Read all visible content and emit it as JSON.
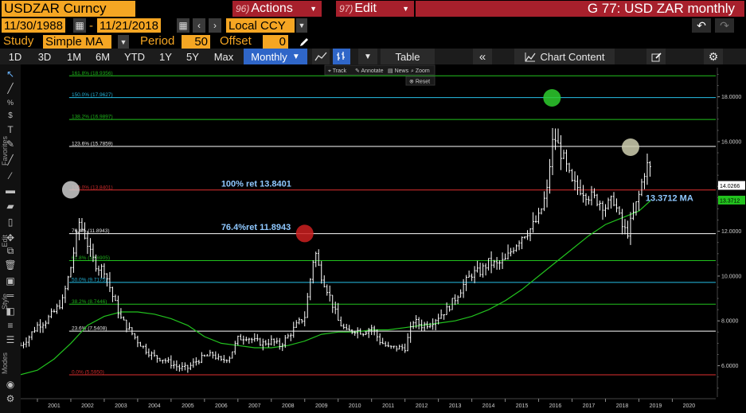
{
  "header": {
    "ticker": "USDZAR Curncy",
    "actions_num": "96)",
    "actions_label": "Actions",
    "edit_num": "97)",
    "edit_label": "Edit",
    "title": "G 77: USD ZAR monthly"
  },
  "range": {
    "start": "11/30/1988",
    "dash": "-",
    "end": "11/21/2018",
    "currency": "Local CCY"
  },
  "study": {
    "study_label": "Study",
    "study_value": "Simple MA",
    "period_label": "Period",
    "period_value": "50",
    "offset_label": "Offset",
    "offset_value": "0"
  },
  "toolbar": {
    "periods": [
      "1D",
      "3D",
      "1M",
      "6M",
      "YTD",
      "1Y",
      "5Y",
      "Max"
    ],
    "frequency": "Monthly",
    "table_label": "Table",
    "chart_content_label": "Chart Content"
  },
  "left_labels": {
    "favorites": "Favorites",
    "edit": "Edit",
    "style": "Style",
    "modes": "Modes"
  },
  "chart_tools": {
    "track": "Track",
    "annotate": "Annotate",
    "news": "News",
    "zoom": "Zoom",
    "reset": "Reset"
  },
  "colors": {
    "accent": "#f5a623",
    "func": "#a7202c",
    "selected": "#2f66c8",
    "ma": "#22c21e",
    "price": "#ffffff"
  },
  "chart_data": {
    "type": "line",
    "title": "G 77: USD ZAR monthly",
    "x_ticks": [
      "2001",
      "2002",
      "2003",
      "2004",
      "2005",
      "2006",
      "2007",
      "2008",
      "2009",
      "2010",
      "2011",
      "2012",
      "2013",
      "2014",
      "2015",
      "2016",
      "2017",
      "2018",
      "2019",
      "2020"
    ],
    "y_ticks": [
      6,
      8,
      10,
      12,
      14,
      16,
      18
    ],
    "y_tick_labels": [
      "6.0000",
      "8.0000",
      "10.0000",
      "12.0000",
      "14.0000",
      "16.0000",
      "18.0000"
    ],
    "ylim": [
      4.6,
      19.3
    ],
    "xlim": [
      2000.0,
      2020.8
    ],
    "grid": false,
    "last_price_label": "14.0266",
    "last_price": 14.0266,
    "last_ma_label": "13.3712",
    "last_ma": 13.3712,
    "fib_levels": [
      {
        "label": "0.0% (5.5950)",
        "value": 5.595,
        "color": "#e03030"
      },
      {
        "label": "23.6% (7.5408)",
        "value": 7.5408,
        "color": "#ffffff"
      },
      {
        "label": "38.2% (8.7446)",
        "value": 8.7446,
        "color": "#22c21e"
      },
      {
        "label": "50.0% (9.7175)",
        "value": 9.7175,
        "color": "#27c0e8"
      },
      {
        "label": "61.8% (10.6905)",
        "value": 10.6905,
        "color": "#22c21e"
      },
      {
        "label": "76.4% (11.8943)",
        "value": 11.8943,
        "color": "#ffffff"
      },
      {
        "label": "100.0% (13.8401)",
        "value": 13.8401,
        "color": "#e03030"
      },
      {
        "label": "123.6% (15.7859)",
        "value": 15.7859,
        "color": "#ffffff"
      },
      {
        "label": "138.2% (16.9897)",
        "value": 16.9897,
        "color": "#22c21e"
      },
      {
        "label": "150.0% (17.9627)",
        "value": 17.9627,
        "color": "#27c0e8"
      },
      {
        "label": "161.8% (18.9356)",
        "value": 18.9356,
        "color": "#22c21e"
      }
    ],
    "annotations": [
      {
        "text": "100% ret 13.8401",
        "x": 2006.0,
        "y": 14.0,
        "color": "#8fc8ff"
      },
      {
        "text": "76.4%ret 11.8943",
        "x": 2006.0,
        "y": 12.05,
        "color": "#8fc8ff"
      },
      {
        "text": "13.3712 MA",
        "x": 2018.7,
        "y": 13.35,
        "color": "#8fc8ff"
      }
    ],
    "markers": [
      {
        "x": 2001.5,
        "y": 13.85,
        "color": "#cccccc"
      },
      {
        "x": 2008.5,
        "y": 11.9,
        "color": "#cc2020"
      },
      {
        "x": 2015.9,
        "y": 17.95,
        "color": "#2ecc2e"
      },
      {
        "x": 2018.25,
        "y": 15.75,
        "color": "#cfcfb0"
      }
    ],
    "series": [
      {
        "name": "USDZAR",
        "x": [
          2000.0,
          2000.25,
          2000.5,
          2000.75,
          2001.0,
          2001.25,
          2001.5,
          2001.75,
          2001.95,
          2002.1,
          2002.3,
          2002.5,
          2002.75,
          2003.0,
          2003.25,
          2003.5,
          2003.75,
          2004.0,
          2004.25,
          2004.5,
          2004.75,
          2005.0,
          2005.25,
          2005.5,
          2005.75,
          2006.0,
          2006.25,
          2006.5,
          2006.75,
          2007.0,
          2007.25,
          2007.5,
          2007.75,
          2008.0,
          2008.25,
          2008.5,
          2008.8,
          2008.95,
          2009.2,
          2009.5,
          2009.75,
          2010.0,
          2010.25,
          2010.5,
          2010.75,
          2011.0,
          2011.25,
          2011.5,
          2011.75,
          2012.0,
          2012.25,
          2012.5,
          2012.75,
          2013.0,
          2013.25,
          2013.5,
          2013.75,
          2014.0,
          2014.25,
          2014.5,
          2014.75,
          2015.0,
          2015.25,
          2015.5,
          2015.75,
          2015.9,
          2016.0,
          2016.25,
          2016.5,
          2016.75,
          2017.0,
          2017.25,
          2017.5,
          2017.75,
          2018.0,
          2018.15,
          2018.3,
          2018.5,
          2018.65,
          2018.8,
          2018.9
        ],
        "values": [
          6.9,
          7.3,
          7.8,
          8.0,
          8.4,
          8.9,
          10.4,
          12.4,
          11.7,
          10.9,
          10.4,
          10.3,
          9.1,
          8.1,
          7.6,
          7.1,
          6.7,
          6.4,
          6.3,
          6.1,
          5.9,
          5.9,
          6.2,
          6.4,
          6.5,
          6.2,
          6.4,
          7.2,
          7.3,
          7.1,
          7.0,
          7.1,
          6.9,
          7.3,
          7.8,
          8.2,
          11.2,
          10.2,
          9.3,
          8.0,
          7.5,
          7.6,
          7.5,
          7.7,
          7.1,
          6.8,
          6.8,
          6.8,
          8.0,
          7.8,
          7.9,
          8.2,
          8.5,
          9.0,
          9.6,
          10.1,
          10.2,
          10.6,
          10.5,
          10.7,
          11.3,
          11.8,
          12.1,
          12.6,
          13.8,
          15.9,
          16.1,
          15.2,
          14.1,
          13.9,
          13.6,
          13.4,
          13.1,
          13.4,
          12.2,
          11.9,
          12.6,
          13.6,
          14.6,
          15.1,
          14.1
        ]
      },
      {
        "name": "MA",
        "x": [
          2000.0,
          2000.5,
          2001.0,
          2001.5,
          2002.0,
          2002.5,
          2003.0,
          2003.5,
          2004.0,
          2004.5,
          2005.0,
          2005.5,
          2006.0,
          2006.5,
          2007.0,
          2007.5,
          2008.0,
          2008.5,
          2009.0,
          2009.5,
          2010.0,
          2010.5,
          2011.0,
          2011.5,
          2012.0,
          2012.5,
          2013.0,
          2013.5,
          2014.0,
          2014.5,
          2015.0,
          2015.5,
          2016.0,
          2016.5,
          2017.0,
          2017.5,
          2018.0,
          2018.5,
          2018.85
        ],
        "values": [
          5.6,
          5.8,
          6.3,
          7.0,
          7.8,
          8.2,
          8.4,
          8.4,
          8.3,
          8.1,
          7.8,
          7.3,
          7.0,
          6.9,
          6.8,
          6.8,
          6.9,
          7.1,
          7.4,
          7.5,
          7.5,
          7.6,
          7.6,
          7.7,
          7.8,
          7.9,
          8.0,
          8.2,
          8.5,
          8.9,
          9.4,
          10.0,
          10.6,
          11.2,
          11.8,
          12.3,
          12.6,
          12.9,
          13.37
        ]
      }
    ]
  }
}
